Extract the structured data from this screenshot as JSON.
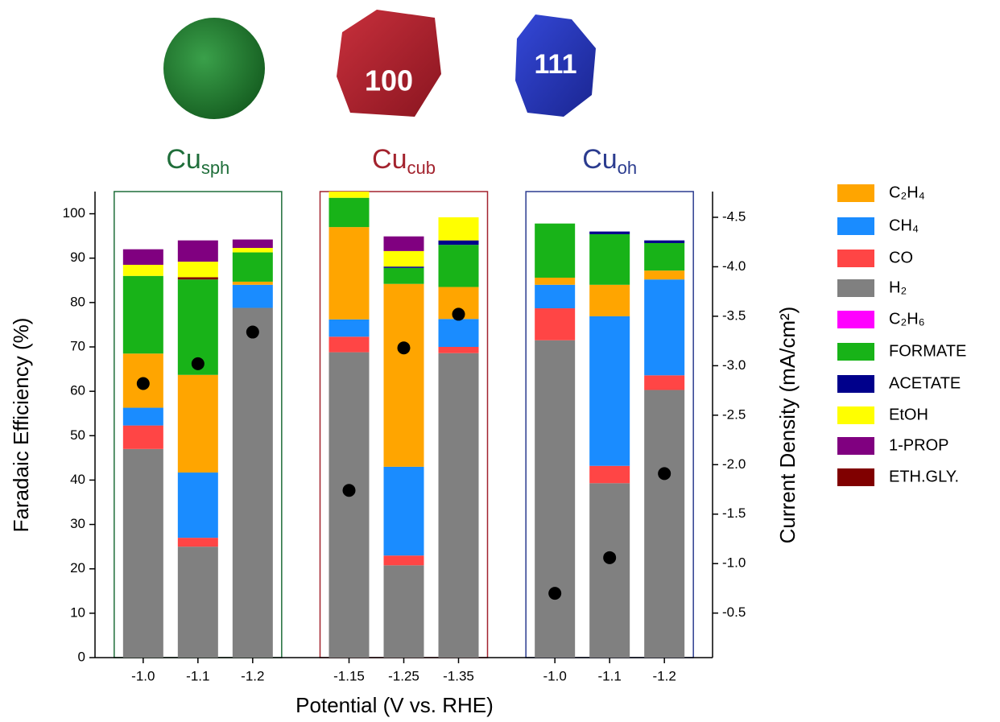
{
  "chart_data": {
    "type": "stacked-bar",
    "particle_labels": [
      "100",
      "111"
    ],
    "groups": [
      {
        "name": "Cu",
        "sub": "sph",
        "color": "#1f6e3a"
      },
      {
        "name": "Cu",
        "sub": "cub",
        "color": "#a3232e"
      },
      {
        "name": "Cu",
        "sub": "oh",
        "color": "#2b3c8f"
      }
    ],
    "categories": [
      "-1.0",
      "-1.1",
      "-1.2",
      "-1.15",
      "-1.25",
      "-1.35",
      "-1.0",
      "-1.1",
      "-1.2"
    ],
    "xlabel": "Potential (V vs. RHE)",
    "ylabel": "Faradaic Efficiency (%)",
    "y2label": "Current Density (mA/cm²)",
    "ylim": [
      0,
      105
    ],
    "yticks": [
      0,
      10,
      20,
      30,
      40,
      50,
      60,
      70,
      80,
      90,
      100
    ],
    "y2lim": [
      -0.05,
      -4.76
    ],
    "y2ticks": [
      -0.5,
      {
        "value": -1,
        "label": "-1.0"
      },
      -1.5,
      {
        "value": -2,
        "label": "-2.0"
      },
      -2.5,
      {
        "value": -3,
        "label": "-3.0"
      },
      -3.5,
      {
        "value": -4,
        "label": "-4.0"
      },
      -4.5
    ],
    "series": [
      {
        "name": "C₂H₄",
        "color": "#ffa500",
        "values": [
          12.2,
          22,
          0.7,
          20.8,
          41.2,
          7.2,
          1.6,
          7.1,
          2
        ]
      },
      {
        "name": "CH₄",
        "color": "#1a8cff",
        "values": [
          4,
          14.7,
          5.2,
          3.9,
          20,
          6.3,
          5.3,
          33.7,
          21.6
        ]
      },
      {
        "name": "CO",
        "color": "#ff4545",
        "values": [
          5.3,
          2,
          0,
          3.5,
          2.2,
          1.4,
          7.2,
          3.9,
          3.3
        ]
      },
      {
        "name": "H₂",
        "color": "#808080",
        "values": [
          47,
          25,
          78.8,
          68.8,
          20.8,
          68.6,
          71.5,
          39.3,
          60.3
        ]
      },
      {
        "name": "C₂H₆",
        "color": "#ff00ff",
        "values": [
          0,
          0,
          0,
          0,
          0,
          0,
          0,
          0,
          0
        ]
      },
      {
        "name": "FORMATE",
        "color": "#18b318",
        "values": [
          17.5,
          21.5,
          6.6,
          6.6,
          3.6,
          9.5,
          12.2,
          11.4,
          6.2
        ]
      },
      {
        "name": "ACETATE",
        "color": "#00008b",
        "values": [
          0,
          0,
          0,
          0,
          0.3,
          1,
          0,
          0.6,
          0.6
        ]
      },
      {
        "name": "EtOH",
        "color": "#ffff00",
        "values": [
          2.5,
          3.5,
          1,
          1.6,
          3.5,
          5.2,
          0,
          0,
          0
        ]
      },
      {
        "name": "1-PROP",
        "color": "#800080",
        "values": [
          3.5,
          4.8,
          1.9,
          0,
          3.3,
          0,
          0,
          0,
          0
        ]
      },
      {
        "name": "ETH.GLY.",
        "color": "#800000",
        "values": [
          0,
          0.5,
          0,
          0,
          0,
          0,
          0,
          0,
          0
        ]
      }
    ],
    "current_density": {
      "axis": "y2",
      "color": "#000000",
      "values": [
        -2.82,
        -3.02,
        -3.34,
        -1.74,
        -3.18,
        -3.52,
        -0.7,
        -1.06,
        -1.91
      ]
    }
  }
}
